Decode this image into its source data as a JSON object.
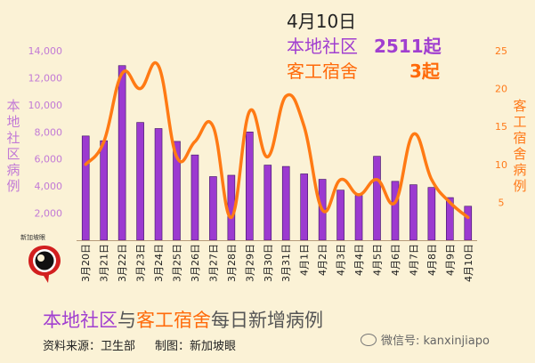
{
  "header": {
    "date": "4月10日",
    "community_label": "本地社区",
    "community_count": "2511起",
    "dorm_label": "客工宿舍",
    "dorm_count": "3起"
  },
  "footer": {
    "title_part1": "本地社区",
    "title_part2": "与",
    "title_part3": "客工宿舍",
    "title_part4": "每日新增病例",
    "source": "资料来源：卫生部",
    "made_by": "制图：新加坡眼",
    "watermark": "微信号: kanxinjiapo",
    "logo_text": "新加坡眼"
  },
  "colors": {
    "bar": "#9c3ad0",
    "bar_border": "#3a1060",
    "line": "#ff7a14",
    "axis_left": "#c27ad6",
    "axis_right": "#ff7a1a"
  },
  "chart_data": {
    "type": "bar",
    "categories": [
      "3月20日",
      "3月21日",
      "3月22日",
      "3月23日",
      "3月24日",
      "3月25日",
      "3月26日",
      "3月27日",
      "3月28日",
      "3月29日",
      "3月30日",
      "3月31日",
      "4月1日",
      "4月2日",
      "4月3日",
      "4月4日",
      "4月5日",
      "4月6日",
      "4月7日",
      "4月8日",
      "4月9日",
      "4月10日"
    ],
    "series": [
      {
        "name": "本地社区病例",
        "axis": "left",
        "type": "bar",
        "values": [
          7700,
          7350,
          12900,
          8700,
          8250,
          7300,
          6300,
          4700,
          4800,
          8000,
          5550,
          5450,
          4900,
          4500,
          3700,
          3300,
          6200,
          4350,
          4100,
          3900,
          3150,
          2511
        ]
      },
      {
        "name": "客工宿舍病例",
        "axis": "right",
        "type": "line",
        "values": [
          10,
          13,
          22,
          20,
          23,
          11,
          13,
          15,
          3,
          17,
          11,
          19,
          15,
          4,
          8,
          6,
          8,
          5,
          14,
          8,
          5,
          3
        ]
      }
    ],
    "ylabel_left": "本地社区病例",
    "ylabel_right": "客工宿舍病例",
    "ylim_left": [
      0,
      14000
    ],
    "yticks_left": [
      "2,000",
      "4,000",
      "6,000",
      "8,000",
      "10,000",
      "12,000",
      "14,000"
    ],
    "ylim_right": [
      0,
      25
    ],
    "yticks_right": [
      "5",
      "10",
      "15",
      "20",
      "25"
    ],
    "grid": false,
    "legend": "none"
  }
}
